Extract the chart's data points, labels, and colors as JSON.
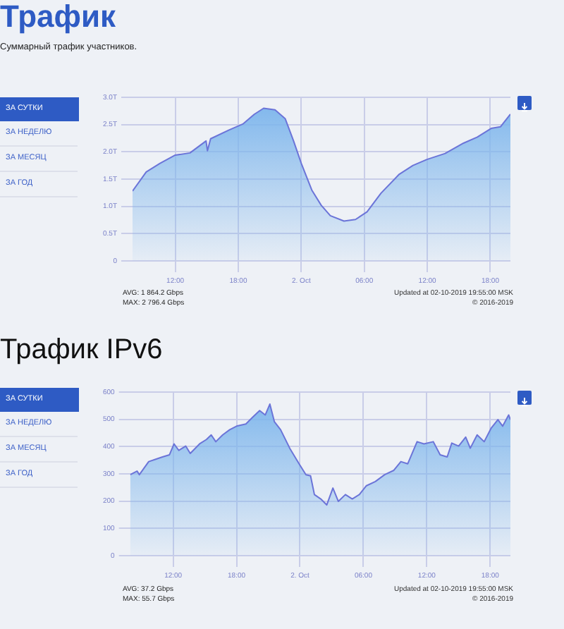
{
  "chart_data": [
    {
      "type": "area",
      "title": "Трафик",
      "subtitle": "Суммарный трафик участников.",
      "annotations": [
        "ЗА СУТКИ",
        "ЗА НЕДЕЛЮ",
        "ЗА МЕСЯЦ",
        "ЗА ГОД",
        "AVG: 1 864.2 Gbps",
        "MAX: 2 796.4 Gbps",
        "Updated at 02-10-2019 19:55:00 MSK",
        "© 2016-2019"
      ],
      "series": [
        {
          "color": "#7cb5ec",
          "x": [
            "2019-10-01T07:56",
            "2019-10-01T09:14",
            "2019-10-01T10:33",
            "2019-10-01T12:00",
            "2019-10-01T13:24",
            "2019-10-01T14:56",
            "2019-10-01T15:04",
            "2019-10-01T15:22",
            "2019-10-01T17:07",
            "2019-10-01T18:26",
            "2019-10-01T19:32",
            "2019-10-01T20:25",
            "2019-10-01T21:30",
            "2019-10-01T22:28",
            "2019-10-01T23:16",
            "2019-10-02T00:00",
            "2019-10-02T01:00",
            "2019-10-02T01:54",
            "2019-10-02T02:46",
            "2019-10-02T04:04",
            "2019-10-02T05:10",
            "2019-10-02T06:16",
            "2019-10-02T07:35",
            "2019-10-02T09:20",
            "2019-10-02T10:38",
            "2019-10-02T11:58",
            "2019-10-02T13:42",
            "2019-10-02T15:27",
            "2019-10-02T16:46",
            "2019-10-02T18:05",
            "2019-10-02T18:58",
            "2019-10-02T19:55"
          ],
          "values": [
            1.28,
            1.63,
            1.79,
            1.94,
            1.98,
            2.2,
            2.02,
            2.24,
            2.4,
            2.51,
            2.69,
            2.8,
            2.77,
            2.61,
            2.2,
            1.79,
            1.3,
            1.02,
            0.83,
            0.73,
            0.76,
            0.9,
            1.24,
            1.59,
            1.75,
            1.86,
            1.97,
            2.16,
            2.27,
            2.43,
            2.46,
            2.69
          ]
        }
      ],
      "xlim": [
        "2019-10-01T07:56",
        "2019-10-02T19:55"
      ],
      "xticks": [
        {
          "value": "2019-10-01T12:00",
          "label": "12:00"
        },
        {
          "value": "2019-10-01T18:00",
          "label": "18:00"
        },
        {
          "value": "2019-10-02T00:00",
          "label": "2. Oct"
        },
        {
          "value": "2019-10-02T06:00",
          "label": "06:00"
        },
        {
          "value": "2019-10-02T12:00",
          "label": "12:00"
        },
        {
          "value": "2019-10-02T18:00",
          "label": "18:00"
        }
      ],
      "ylim": [
        0,
        3
      ],
      "yticks": [
        0,
        {
          "value": 0.5,
          "label": "0.5T"
        },
        {
          "value": 1,
          "label": "1.0T"
        },
        {
          "value": 1.5,
          "label": "1.5T"
        },
        {
          "value": 2,
          "label": "2.0T"
        },
        {
          "value": 2.5,
          "label": "2.5T"
        },
        {
          "value": 3,
          "label": "3.0T"
        }
      ],
      "grid": true,
      "legend": false,
      "marker": "none"
    },
    {
      "type": "area",
      "title": "Трафик IPv6",
      "annotations": [
        "ЗА СУТКИ",
        "ЗА НЕДЕЛЮ",
        "ЗА МЕСЯЦ",
        "ЗА ГОД",
        "AVG: 37.2 Gbps",
        "MAX: 55.7 Gbps",
        "Updated at 02-10-2019 19:55:00 MSK",
        "© 2016-2019"
      ],
      "series": [
        {
          "color": "#7cb5ec",
          "x": [
            "2019-10-01T07:56",
            "2019-10-01T08:35",
            "2019-10-01T08:48",
            "2019-10-01T09:41",
            "2019-10-01T10:18",
            "2019-10-01T10:59",
            "2019-10-01T11:39",
            "2019-10-01T12:05",
            "2019-10-01T12:32",
            "2019-10-01T13:11",
            "2019-10-01T13:37",
            "2019-10-01T14:30",
            "2019-10-01T15:09",
            "2019-10-01T15:36",
            "2019-10-01T16:02",
            "2019-10-01T16:41",
            "2019-10-01T17:21",
            "2019-10-01T18:00",
            "2019-10-01T18:53",
            "2019-10-01T19:32",
            "2019-10-01T20:11",
            "2019-10-01T20:43",
            "2019-10-01T21:09",
            "2019-10-01T21:35",
            "2019-10-01T22:10",
            "2019-10-01T23:02",
            "2019-10-01T23:55",
            "2019-10-02T00:34",
            "2019-10-02T01:00",
            "2019-10-02T01:22",
            "2019-10-02T01:58",
            "2019-10-02T02:32",
            "2019-10-02T03:07",
            "2019-10-02T03:38",
            "2019-10-02T04:18",
            "2019-10-02T04:57",
            "2019-10-02T05:37",
            "2019-10-02T06:16",
            "2019-10-02T07:08",
            "2019-10-02T08:01",
            "2019-10-02T08:53",
            "2019-10-02T09:33",
            "2019-10-02T10:12",
            "2019-10-02T11:05",
            "2019-10-02T11:44",
            "2019-10-02T12:37",
            "2019-10-02T13:16",
            "2019-10-02T13:56",
            "2019-10-02T14:22",
            "2019-10-02T15:01",
            "2019-10-02T15:41",
            "2019-10-02T16:07",
            "2019-10-02T16:46",
            "2019-10-02T17:26",
            "2019-10-02T18:05",
            "2019-10-02T18:44",
            "2019-10-02T19:11",
            "2019-10-02T19:45",
            "2019-10-02T19:55"
          ],
          "values": [
            297,
            310,
            297,
            345,
            353,
            362,
            370,
            410,
            386,
            402,
            375,
            410,
            426,
            443,
            418,
            443,
            462,
            475,
            483,
            508,
            532,
            516,
            556,
            491,
            462,
            394,
            337,
            297,
            293,
            224,
            208,
            186,
            248,
            199,
            224,
            208,
            224,
            256,
            272,
            297,
            313,
            345,
            337,
            418,
            410,
            418,
            370,
            362,
            413,
            402,
            435,
            394,
            443,
            418,
            467,
            499,
            475,
            516,
            499
          ]
        }
      ],
      "xlim": [
        "2019-10-01T07:56",
        "2019-10-02T19:55"
      ],
      "xticks": [
        {
          "value": "2019-10-01T12:00",
          "label": "12:00"
        },
        {
          "value": "2019-10-01T18:00",
          "label": "18:00"
        },
        {
          "value": "2019-10-02T00:00",
          "label": "2. Oct"
        },
        {
          "value": "2019-10-02T06:00",
          "label": "06:00"
        },
        {
          "value": "2019-10-02T12:00",
          "label": "12:00"
        },
        {
          "value": "2019-10-02T18:00",
          "label": "18:00"
        }
      ],
      "ylim": [
        0,
        600
      ],
      "yticks": [
        0,
        100,
        200,
        300,
        400,
        500,
        600
      ],
      "grid": true,
      "legend": false,
      "marker": "none"
    }
  ]
}
